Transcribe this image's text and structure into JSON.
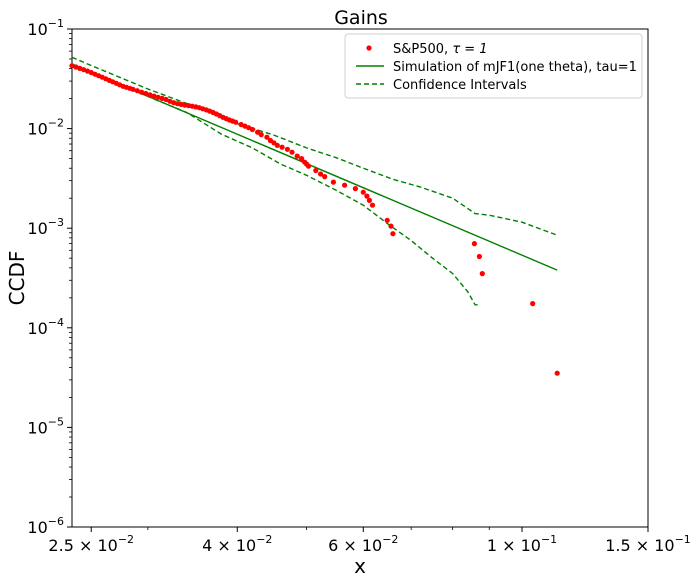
{
  "chart_data": {
    "type": "scatter",
    "title": "Gains",
    "xlabel": "x",
    "ylabel": "CCDF",
    "xscale": "log",
    "yscale": "log",
    "xlim": [
      0.0235,
      0.15
    ],
    "ylim": [
      1e-06,
      0.1
    ],
    "x_ticks": [
      {
        "value": 0.025,
        "mantissa": "2.5",
        "exp": "−2"
      },
      {
        "value": 0.04,
        "mantissa": "4",
        "exp": "−2"
      },
      {
        "value": 0.06,
        "mantissa": "6",
        "exp": "−2"
      },
      {
        "value": 0.1,
        "mantissa": "1",
        "exp": "−1"
      },
      {
        "value": 0.15,
        "mantissa": "1.5",
        "exp": "−1"
      }
    ],
    "y_ticks": [
      {
        "value": 0.1,
        "exp": "−1"
      },
      {
        "value": 0.01,
        "exp": "−2"
      },
      {
        "value": 0.001,
        "exp": "−3"
      },
      {
        "value": 0.0001,
        "exp": "−4"
      },
      {
        "value": 1e-05,
        "exp": "−5"
      },
      {
        "value": 1e-06,
        "exp": "−6"
      }
    ],
    "legend": {
      "position": "top-right",
      "entries": [
        {
          "label_prefix": "S&P500, ",
          "label_math": "τ = 1",
          "style": "marker",
          "color": "#ff0000"
        },
        {
          "label": "Simulation of mJF1(one theta), tau=1",
          "style": "solid",
          "color": "#008000"
        },
        {
          "label": "Confidence Intervals",
          "style": "dashed",
          "color": "#008000"
        }
      ]
    },
    "series": [
      {
        "name": "S&P500, τ = 1",
        "kind": "scatter",
        "color": "#ff0000",
        "x": [
          0.0235,
          0.0238,
          0.0241,
          0.0244,
          0.0247,
          0.025,
          0.0253,
          0.0256,
          0.0259,
          0.0262,
          0.0265,
          0.0268,
          0.0271,
          0.0274,
          0.0277,
          0.028,
          0.0283,
          0.0286,
          0.029,
          0.0294,
          0.0298,
          0.0302,
          0.0306,
          0.031,
          0.0314,
          0.0318,
          0.0322,
          0.0326,
          0.033,
          0.0334,
          0.0338,
          0.0342,
          0.0346,
          0.035,
          0.0354,
          0.0358,
          0.0362,
          0.0366,
          0.037,
          0.0374,
          0.0378,
          0.0382,
          0.0386,
          0.039,
          0.0394,
          0.0398,
          0.0405,
          0.041,
          0.0415,
          0.042,
          0.0427,
          0.0432,
          0.044,
          0.0445,
          0.045,
          0.0455,
          0.0462,
          0.047,
          0.0477,
          0.0485,
          0.0492,
          0.0497,
          0.05,
          0.0503,
          0.0515,
          0.0523,
          0.053,
          0.0545,
          0.0565,
          0.0585,
          0.06,
          0.0607,
          0.0612,
          0.0618,
          0.0648,
          0.0656,
          0.066,
          0.0858,
          0.0872,
          0.088,
          0.1035,
          0.112
        ],
        "y": [
          0.0428,
          0.0415,
          0.0402,
          0.039,
          0.0378,
          0.0366,
          0.0352,
          0.034,
          0.0328,
          0.0316,
          0.0305,
          0.0295,
          0.0285,
          0.0275,
          0.0266,
          0.026,
          0.0254,
          0.0248,
          0.024,
          0.0232,
          0.0225,
          0.0218,
          0.0212,
          0.0206,
          0.0201,
          0.0196,
          0.0188,
          0.0182,
          0.0178,
          0.0175,
          0.0172,
          0.017,
          0.0168,
          0.0165,
          0.0162,
          0.0158,
          0.0154,
          0.015,
          0.0145,
          0.014,
          0.0135,
          0.013,
          0.0126,
          0.0122,
          0.0119,
          0.0116,
          0.011,
          0.0106,
          0.0102,
          0.0098,
          0.0092,
          0.0087,
          0.0082,
          0.0076,
          0.0072,
          0.0068,
          0.0065,
          0.0062,
          0.0058,
          0.0053,
          0.005,
          0.0046,
          0.0044,
          0.0042,
          0.0038,
          0.0035,
          0.0033,
          0.0029,
          0.0027,
          0.0025,
          0.0023,
          0.0021,
          0.0019,
          0.0017,
          0.0012,
          0.00105,
          0.00088,
          0.0007,
          0.00052,
          0.00035,
          0.000175,
          3.5e-05
        ]
      },
      {
        "name": "Simulation of mJF1(one theta), tau=1",
        "kind": "line",
        "color": "#008000",
        "x": [
          0.0235,
          0.112
        ],
        "y": [
          0.0445,
          0.00038
        ]
      },
      {
        "name": "Confidence Intervals (upper)",
        "kind": "dashed",
        "color": "#008000",
        "x": [
          0.0235,
          0.025,
          0.03,
          0.035,
          0.04,
          0.045,
          0.05,
          0.055,
          0.06,
          0.066,
          0.072,
          0.08,
          0.086,
          0.09,
          0.1,
          0.112
        ],
        "y": [
          0.052,
          0.043,
          0.025,
          0.0165,
          0.0112,
          0.0086,
          0.0064,
          0.0051,
          0.004,
          0.0031,
          0.0026,
          0.002,
          0.0014,
          0.00135,
          0.00115,
          0.00085
        ]
      },
      {
        "name": "Confidence Intervals (lower)",
        "kind": "dashed",
        "color": "#008000",
        "x": [
          0.0235,
          0.026,
          0.03,
          0.034,
          0.038,
          0.042,
          0.046,
          0.05,
          0.055,
          0.06,
          0.065,
          0.07,
          0.075,
          0.08,
          0.084,
          0.086,
          0.0875
        ],
        "y": [
          0.042,
          0.032,
          0.021,
          0.0145,
          0.0088,
          0.0064,
          0.0044,
          0.0034,
          0.0024,
          0.0017,
          0.0011,
          0.00075,
          0.0005,
          0.00035,
          0.00023,
          0.00017,
          0.00017
        ]
      }
    ]
  }
}
